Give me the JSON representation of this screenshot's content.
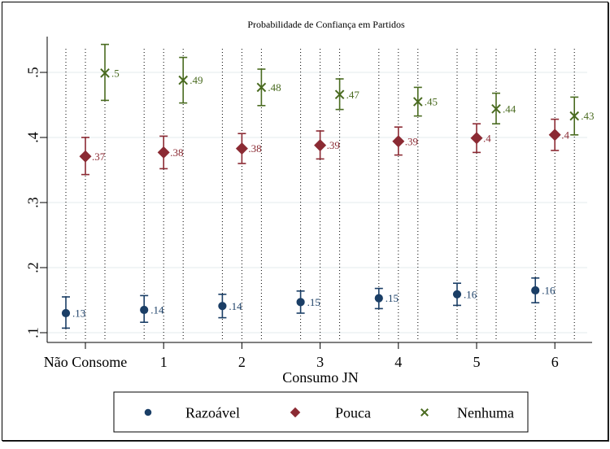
{
  "chart_data": {
    "type": "scatter",
    "subtype": "dot-with-error-bars",
    "title": "Probabilidade de Confiança em Partidos",
    "xlabel": "Consumo JN",
    "ylabel": "",
    "categories": [
      "Não Consome",
      "1",
      "2",
      "3",
      "4",
      "5",
      "6"
    ],
    "yticks": [
      0.1,
      0.2,
      0.3,
      0.4,
      0.5
    ],
    "ytick_labels": [
      ".1",
      ".2",
      ".3",
      ".4",
      ".5"
    ],
    "ylim": [
      0.085,
      0.555
    ],
    "grid": true,
    "legend_position": "bottom",
    "series": [
      {
        "name": "Razoável",
        "marker": "circle",
        "color": "#1a3e66",
        "values": [
          0.13,
          0.135,
          0.141,
          0.147,
          0.153,
          0.159,
          0.165
        ],
        "labels": [
          ".13",
          ".14",
          ".14",
          ".15",
          ".15",
          ".16",
          ".16"
        ],
        "ci_low": [
          0.107,
          0.116,
          0.123,
          0.13,
          0.137,
          0.142,
          0.146
        ],
        "ci_high": [
          0.155,
          0.157,
          0.159,
          0.164,
          0.168,
          0.176,
          0.184
        ]
      },
      {
        "name": "Pouca",
        "marker": "diamond",
        "color": "#8b2a33",
        "values": [
          0.371,
          0.377,
          0.383,
          0.388,
          0.394,
          0.399,
          0.404
        ],
        "labels": [
          ".37",
          ".38",
          ".38",
          ".39",
          ".39",
          ".4",
          ".4"
        ],
        "ci_low": [
          0.343,
          0.352,
          0.36,
          0.367,
          0.373,
          0.377,
          0.38
        ],
        "ci_high": [
          0.4,
          0.402,
          0.406,
          0.41,
          0.416,
          0.421,
          0.428
        ]
      },
      {
        "name": "Nenhuma",
        "marker": "x",
        "color": "#4a6b20",
        "values": [
          0.499,
          0.488,
          0.477,
          0.466,
          0.455,
          0.444,
          0.433
        ],
        "labels": [
          ".5",
          ".49",
          ".48",
          ".47",
          ".45",
          ".44",
          ".43"
        ],
        "ci_low": [
          0.457,
          0.453,
          0.449,
          0.443,
          0.433,
          0.421,
          0.404
        ],
        "ci_high": [
          0.543,
          0.523,
          0.505,
          0.49,
          0.477,
          0.468,
          0.462
        ]
      }
    ]
  }
}
